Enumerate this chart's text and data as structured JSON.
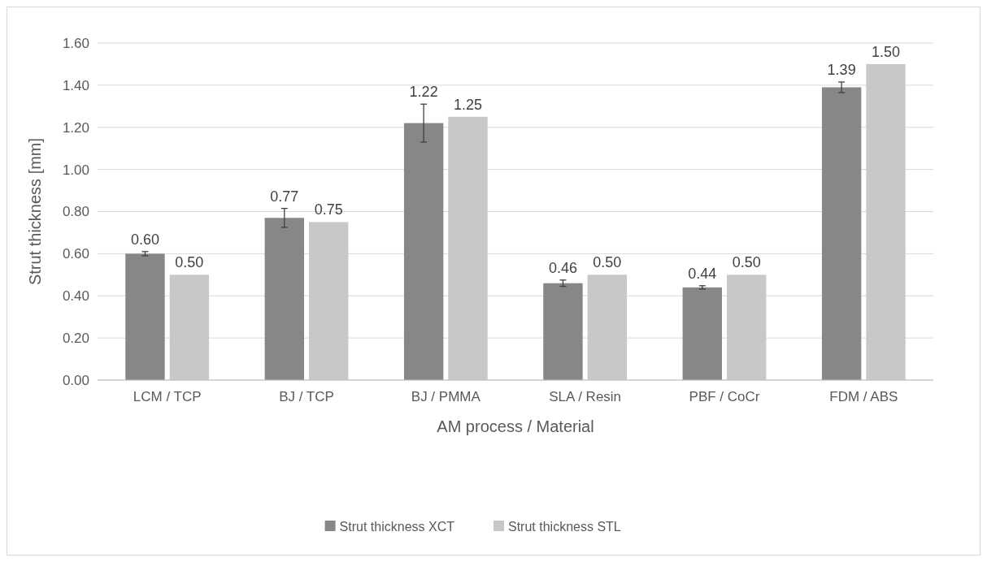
{
  "chart_data": {
    "type": "bar",
    "xlabel": "AM process / Material",
    "ylabel": "Strut thickness [mm]",
    "categories": [
      "LCM / TCP",
      "BJ / TCP",
      "BJ / PMMA",
      "SLA / Resin",
      "PBF / CoCr",
      "FDM / ABS"
    ],
    "series": [
      {
        "name": "Strut thickness XCT",
        "color": "#878787",
        "values": [
          0.6,
          0.77,
          1.22,
          0.46,
          0.44,
          1.39
        ],
        "errors": [
          0.01,
          0.045,
          0.09,
          0.015,
          0.008,
          0.025
        ],
        "value_labels": [
          "0.60",
          "0.77",
          "1.22",
          "0.46",
          "0.44",
          "1.39"
        ]
      },
      {
        "name": "Strut thickness STL",
        "color": "#c8c8c8",
        "values": [
          0.5,
          0.75,
          1.25,
          0.5,
          0.5,
          1.5
        ],
        "value_labels": [
          "0.50",
          "0.75",
          "1.25",
          "0.50",
          "0.50",
          "1.50"
        ]
      }
    ],
    "ylim": [
      0,
      1.6
    ],
    "yticks": [
      {
        "value": 0,
        "label": "0.00"
      },
      {
        "value": 0.2,
        "label": "0.20"
      },
      {
        "value": 0.4,
        "label": "0.40"
      },
      {
        "value": 0.6,
        "label": "0.60"
      },
      {
        "value": 0.8,
        "label": "0.80"
      },
      {
        "value": 1,
        "label": "1.00"
      },
      {
        "value": 1.2,
        "label": "1.20"
      },
      {
        "value": 1.4,
        "label": "1.40"
      },
      {
        "value": 1.6,
        "label": "1.60"
      }
    ],
    "grid": "y",
    "legend": "bottom"
  }
}
